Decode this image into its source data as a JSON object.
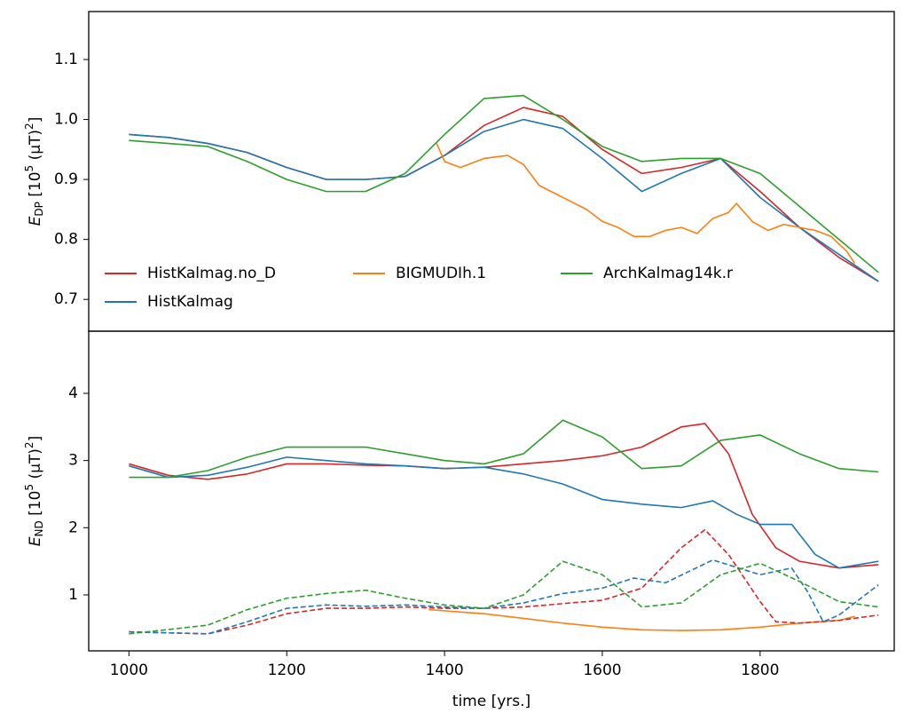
{
  "chart_data": [
    {
      "type": "line",
      "ylabel": [
        "E",
        "DP",
        " [10",
        "5",
        " (μT)",
        "2",
        "]"
      ],
      "xlim": [
        949,
        1970
      ],
      "ylim": [
        0.647,
        1.18
      ],
      "yticks": [
        0.7,
        0.8,
        0.9,
        {
          "value": 1,
          "label": "1.0"
        },
        1.1
      ],
      "series": [
        {
          "name": "HistKalmag.no_D",
          "color": "#d62728",
          "x": [
            1000,
            1050,
            1100,
            1150,
            1200,
            1250,
            1300,
            1350,
            1400,
            1450,
            1500,
            1550,
            1600,
            1650,
            1700,
            1750,
            1800,
            1850,
            1900,
            1950
          ],
          "values": [
            0.975,
            0.97,
            0.96,
            0.945,
            0.92,
            0.9,
            0.9,
            0.905,
            0.94,
            0.99,
            1.02,
            1.005,
            0.95,
            0.91,
            0.92,
            0.935,
            0.88,
            0.82,
            0.77,
            0.73
          ]
        },
        {
          "name": "HistKalmag",
          "color": "#1f77b4",
          "x": [
            1000,
            1050,
            1100,
            1150,
            1200,
            1250,
            1300,
            1350,
            1400,
            1450,
            1500,
            1550,
            1600,
            1650,
            1700,
            1750,
            1800,
            1850,
            1900,
            1950
          ],
          "values": [
            0.975,
            0.97,
            0.96,
            0.945,
            0.92,
            0.9,
            0.9,
            0.905,
            0.94,
            0.98,
            1.0,
            0.985,
            0.935,
            0.88,
            0.91,
            0.935,
            0.87,
            0.82,
            0.775,
            0.73
          ]
        },
        {
          "name": "BIGMUDIh.1",
          "color": "#ff7f0e",
          "x": [
            1390,
            1400,
            1420,
            1450,
            1480,
            1500,
            1520,
            1550,
            1580,
            1600,
            1620,
            1640,
            1660,
            1680,
            1700,
            1720,
            1740,
            1760,
            1770,
            1790,
            1810,
            1830,
            1850,
            1870,
            1890,
            1910,
            1920
          ],
          "values": [
            0.96,
            0.93,
            0.92,
            0.935,
            0.94,
            0.925,
            0.89,
            0.87,
            0.85,
            0.83,
            0.82,
            0.805,
            0.805,
            0.815,
            0.82,
            0.81,
            0.835,
            0.845,
            0.86,
            0.83,
            0.815,
            0.825,
            0.82,
            0.815,
            0.805,
            0.78,
            0.76
          ]
        },
        {
          "name": "ArchKalmag14k.r",
          "color": "#2ca02c",
          "x": [
            1000,
            1100,
            1150,
            1200,
            1250,
            1300,
            1350,
            1400,
            1450,
            1500,
            1550,
            1600,
            1650,
            1700,
            1750,
            1800,
            1850,
            1900,
            1950
          ],
          "values": [
            0.965,
            0.955,
            0.93,
            0.9,
            0.88,
            0.88,
            0.91,
            0.975,
            1.035,
            1.04,
            1.0,
            0.955,
            0.93,
            0.935,
            0.935,
            0.91,
            0.855,
            0.8,
            0.745
          ]
        }
      ]
    },
    {
      "type": "line",
      "ylabel": [
        "E",
        "ND",
        " [10",
        "5",
        " (μT)",
        "2",
        "]"
      ],
      "xlabel": "time [yrs.]",
      "xlim": [
        949,
        1970
      ],
      "ylim": [
        0.167,
        4.925
      ],
      "xticks": [
        1000,
        1200,
        1400,
        1600,
        1800
      ],
      "yticks": [
        1,
        2,
        3,
        4
      ],
      "series": [
        {
          "color": "#d62728",
          "x": [
            1000,
            1050,
            1100,
            1150,
            1200,
            1250,
            1300,
            1350,
            1400,
            1450,
            1500,
            1550,
            1600,
            1650,
            1700,
            1730,
            1760,
            1790,
            1820,
            1850,
            1900,
            1950
          ],
          "values": [
            2.95,
            2.78,
            2.72,
            2.8,
            2.95,
            2.95,
            2.93,
            2.92,
            2.88,
            2.9,
            2.95,
            3.0,
            3.07,
            3.2,
            3.5,
            3.55,
            3.1,
            2.2,
            1.7,
            1.5,
            1.4,
            1.45
          ]
        },
        {
          "color": "#1f77b4",
          "x": [
            1000,
            1050,
            1100,
            1150,
            1200,
            1250,
            1300,
            1350,
            1400,
            1450,
            1500,
            1550,
            1600,
            1650,
            1700,
            1740,
            1770,
            1800,
            1840,
            1870,
            1900,
            1950
          ],
          "values": [
            2.92,
            2.75,
            2.78,
            2.9,
            3.05,
            3.0,
            2.95,
            2.92,
            2.88,
            2.9,
            2.8,
            2.65,
            2.42,
            2.35,
            2.3,
            2.4,
            2.2,
            2.05,
            2.05,
            1.6,
            1.4,
            1.5
          ]
        },
        {
          "color": "#2ca02c",
          "x": [
            1000,
            1050,
            1100,
            1150,
            1200,
            1250,
            1300,
            1350,
            1400,
            1450,
            1500,
            1550,
            1600,
            1650,
            1700,
            1750,
            1800,
            1850,
            1900,
            1950
          ],
          "values": [
            2.75,
            2.75,
            2.85,
            3.05,
            3.2,
            3.2,
            3.2,
            3.1,
            3.0,
            2.95,
            3.1,
            3.6,
            3.35,
            2.88,
            2.92,
            3.3,
            3.38,
            3.1,
            2.88,
            2.83
          ]
        },
        {
          "color": "#ff7f0e",
          "x": [
            1380,
            1450,
            1500,
            1550,
            1600,
            1650,
            1700,
            1750,
            1800,
            1850,
            1900,
            1920
          ],
          "values": [
            0.78,
            0.72,
            0.65,
            0.58,
            0.52,
            0.48,
            0.47,
            0.48,
            0.52,
            0.58,
            0.62,
            0.68
          ]
        },
        {
          "color": "#d62728",
          "dash": true,
          "x": [
            1000,
            1100,
            1150,
            1200,
            1250,
            1300,
            1350,
            1400,
            1450,
            1500,
            1550,
            1600,
            1650,
            1700,
            1730,
            1760,
            1800,
            1820,
            1850,
            1900,
            1950
          ],
          "values": [
            0.45,
            0.42,
            0.55,
            0.72,
            0.8,
            0.8,
            0.82,
            0.8,
            0.8,
            0.82,
            0.87,
            0.92,
            1.1,
            1.7,
            1.97,
            1.6,
            0.9,
            0.6,
            0.58,
            0.62,
            0.7
          ]
        },
        {
          "color": "#1f77b4",
          "dash": true,
          "x": [
            1000,
            1100,
            1150,
            1200,
            1250,
            1300,
            1350,
            1400,
            1450,
            1500,
            1550,
            1600,
            1640,
            1680,
            1740,
            1800,
            1840,
            1860,
            1880,
            1900,
            1950
          ],
          "values": [
            0.45,
            0.42,
            0.6,
            0.8,
            0.85,
            0.83,
            0.85,
            0.82,
            0.8,
            0.88,
            1.02,
            1.1,
            1.25,
            1.18,
            1.52,
            1.3,
            1.4,
            1.05,
            0.6,
            0.7,
            1.15
          ]
        },
        {
          "color": "#2ca02c",
          "dash": true,
          "x": [
            1000,
            1100,
            1150,
            1200,
            1250,
            1300,
            1350,
            1400,
            1450,
            1500,
            1550,
            1600,
            1650,
            1700,
            1750,
            1800,
            1850,
            1900,
            1950
          ],
          "values": [
            0.42,
            0.55,
            0.78,
            0.95,
            1.02,
            1.07,
            0.95,
            0.85,
            0.8,
            1.0,
            1.5,
            1.3,
            0.82,
            0.88,
            1.3,
            1.47,
            1.2,
            0.9,
            0.82
          ]
        }
      ]
    }
  ]
}
